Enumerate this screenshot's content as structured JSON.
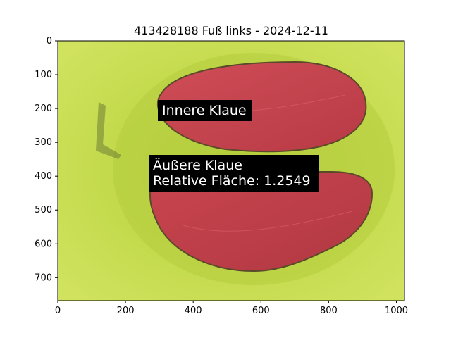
{
  "figure": {
    "title": "413428188 Fuß links - 2024-12-11"
  },
  "axes": {
    "x_ticks": [
      "0",
      "200",
      "400",
      "600",
      "800",
      "1000"
    ],
    "y_ticks": [
      "0",
      "100",
      "200",
      "300",
      "400",
      "500",
      "600",
      "700"
    ],
    "x_tick_values": [
      0,
      200,
      400,
      600,
      800,
      1000
    ],
    "y_tick_values": [
      0,
      100,
      200,
      300,
      400,
      500,
      600,
      700
    ],
    "xlim": [
      0,
      1024
    ],
    "ylim": [
      768,
      0
    ]
  },
  "annotations": {
    "inner": "Innere Klaue",
    "outer_line1": "Äußere Klaue",
    "outer_line2": "Relative Fläche: 1.2549"
  },
  "colors": {
    "background": "#c9df52",
    "mask": "#c6424c",
    "label_box": "#000000",
    "label_text": "#ffffff"
  }
}
